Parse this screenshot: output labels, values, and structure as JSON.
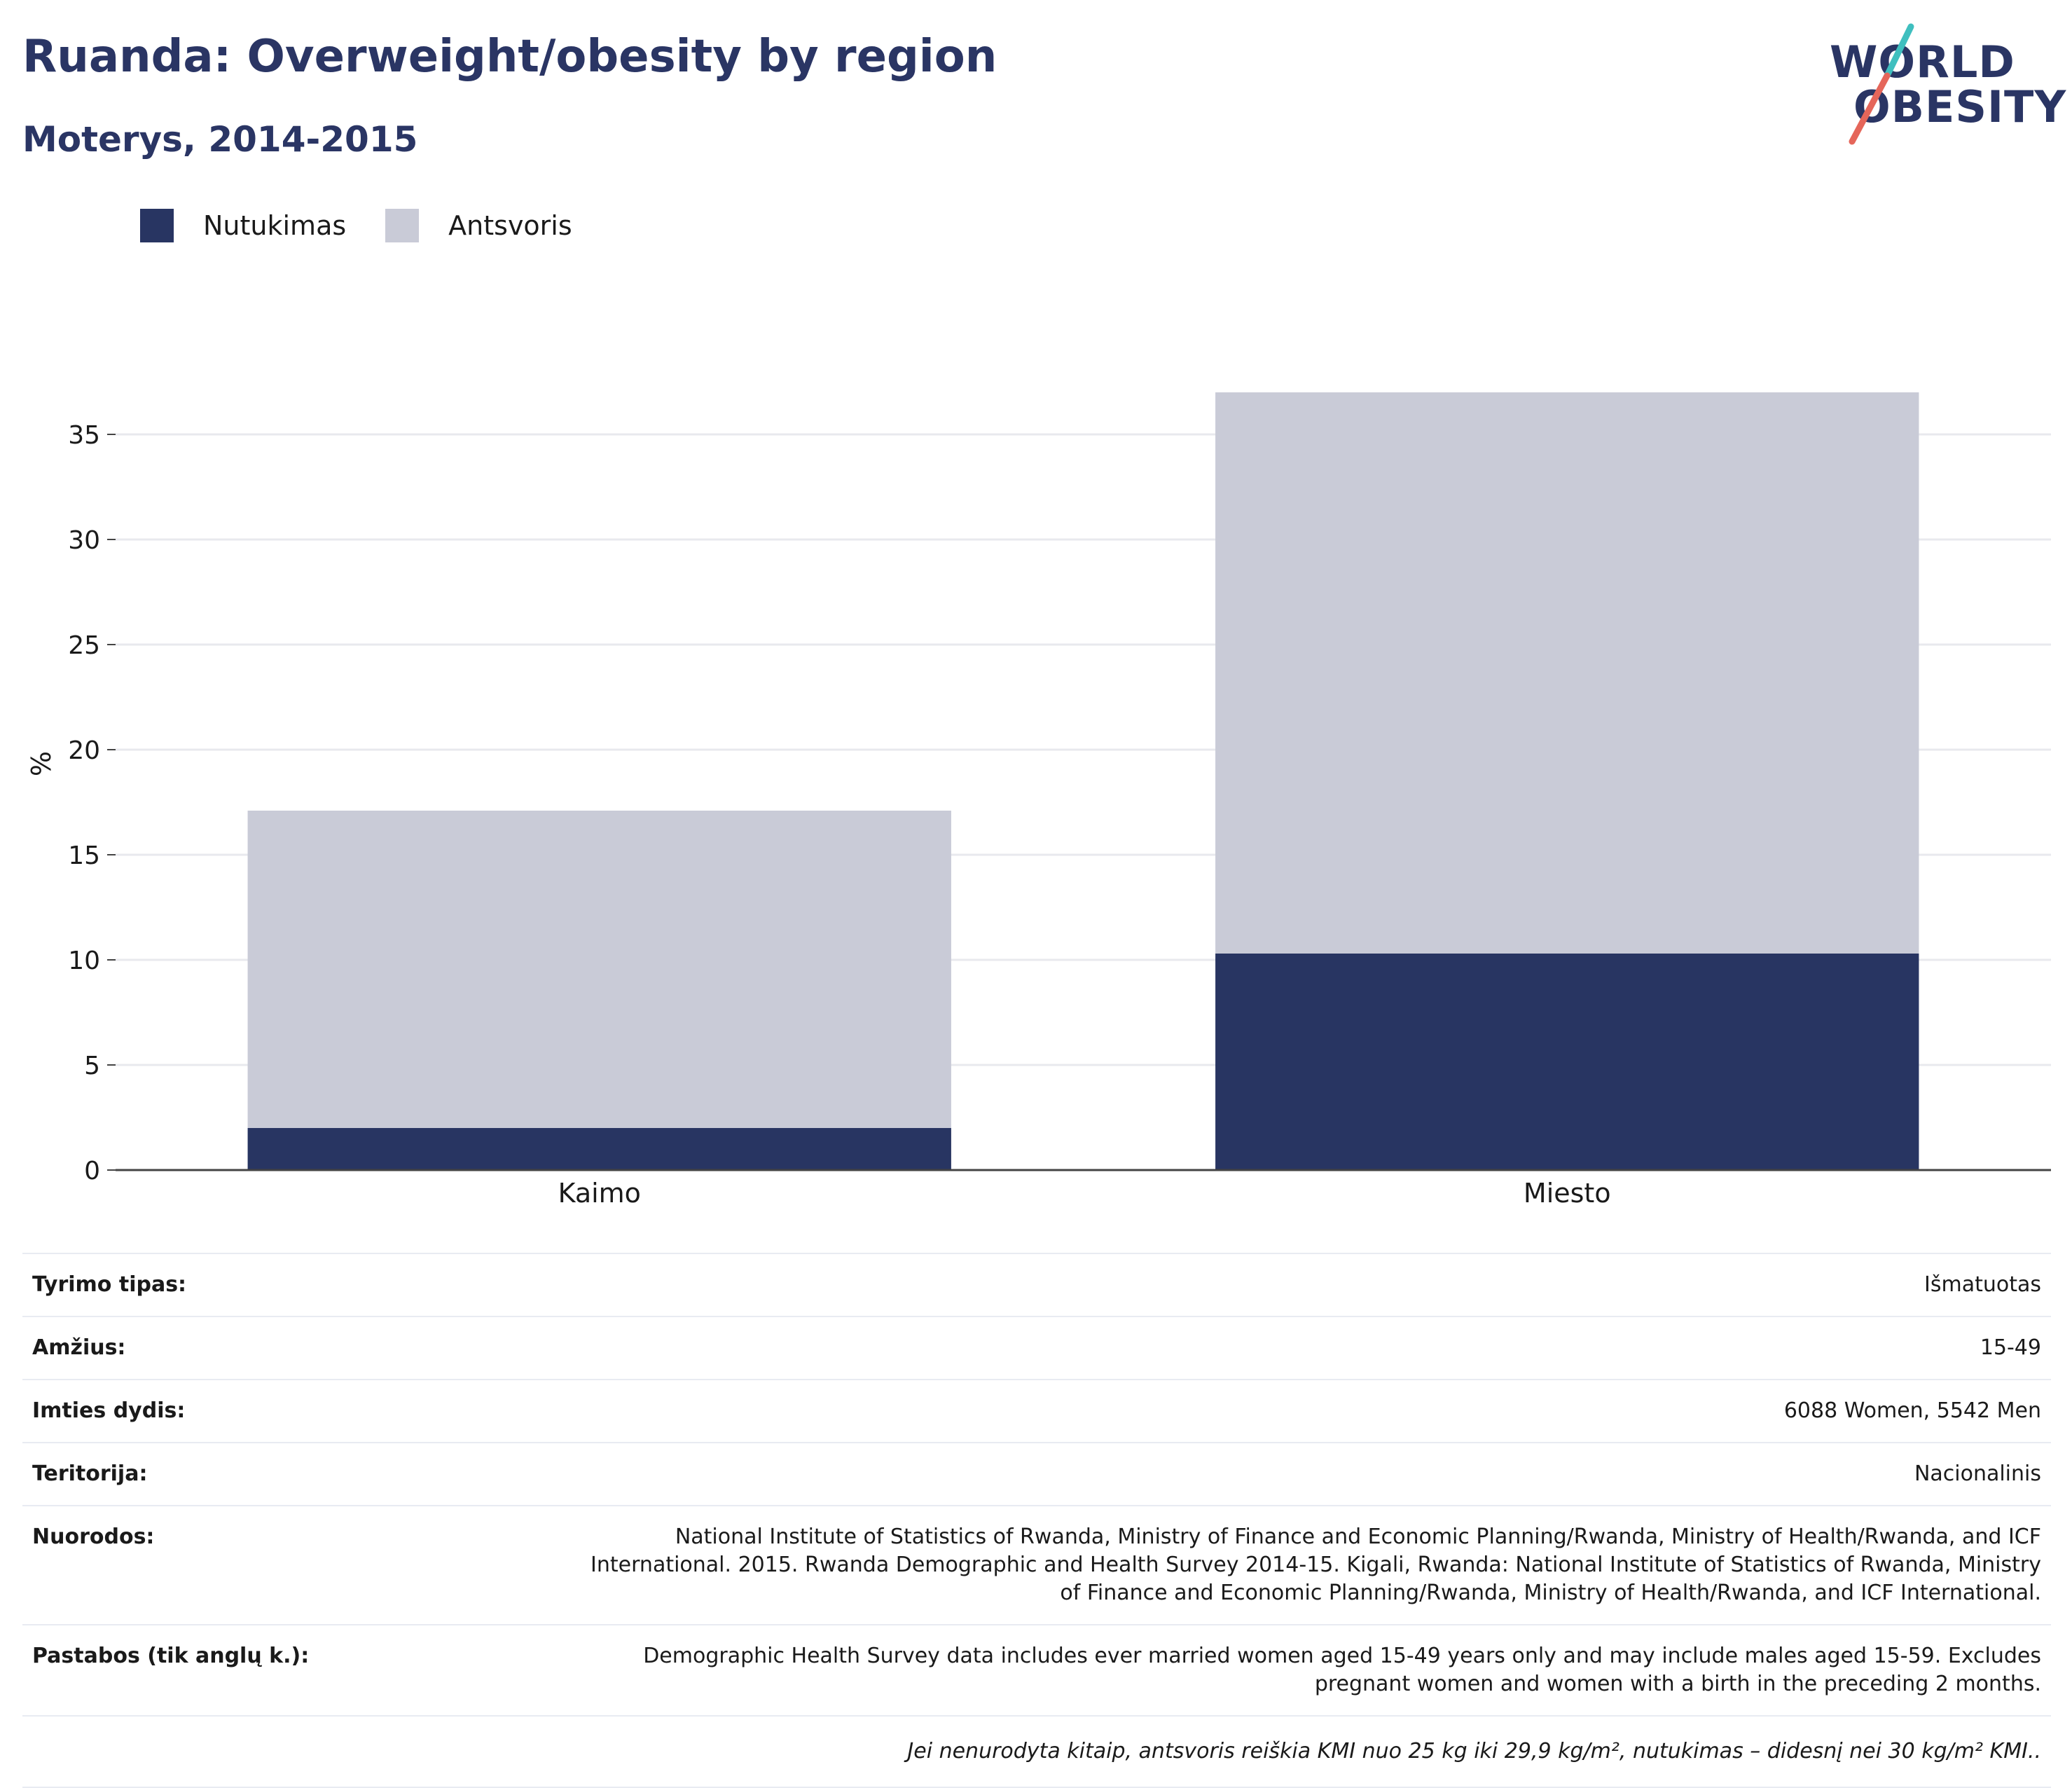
{
  "header": {
    "title": "Ruanda: Overweight/obesity by region",
    "subtitle": "Moterys, 2014-2015"
  },
  "logo": {
    "line1": "WORLD",
    "line2": "OBESITY"
  },
  "colors": {
    "obesity": "#283562",
    "overweight": "#c9cbd7",
    "title": "#2a3564",
    "logo_teal": "#3fbfbf",
    "logo_coral": "#e5665a"
  },
  "chart_data": {
    "type": "bar",
    "stacked": true,
    "categories": [
      "Kaimo",
      "Miesto"
    ],
    "series": [
      {
        "name": "Nutukimas",
        "values": [
          2.0,
          10.3
        ],
        "color": "#283562"
      },
      {
        "name": "Antsvoris",
        "values": [
          15.1,
          26.7
        ],
        "color": "#c9cbd7"
      }
    ],
    "xlabel": "",
    "ylabel": "%",
    "ylim": [
      0,
      37
    ],
    "yticks": [
      0,
      5,
      10,
      15,
      20,
      25,
      30,
      35
    ],
    "grid": true,
    "legend_position": "top-left"
  },
  "meta": {
    "rows": [
      {
        "label": "Tyrimo tipas:",
        "value": "Išmatuotas"
      },
      {
        "label": "Amžius:",
        "value": "15-49"
      },
      {
        "label": "Imties dydis:",
        "value": "6088 Women, 5542 Men"
      },
      {
        "label": "Teritorija:",
        "value": "Nacionalinis"
      },
      {
        "label": "Nuorodos:",
        "value": "National Institute of Statistics of Rwanda, Ministry of Finance and Economic Planning/Rwanda, Ministry of Health/Rwanda, and ICF International. 2015. Rwanda Demographic and Health Survey 2014-15. Kigali, Rwanda: National Institute of Statistics of Rwanda, Ministry of Finance and Economic Planning/Rwanda, Ministry of Health/Rwanda, and ICF International."
      },
      {
        "label": "Pastabos (tik anglų k.):",
        "value": "Demographic Health Survey data includes ever married women aged 15-49 years only and may include males aged 15-59. Excludes pregnant women and women with a birth in the preceding 2 months."
      }
    ],
    "footnote": "Jei nenurodyta kitaip, antsvoris reiškia KMI nuo 25 kg iki 29,9 kg/m², nutukimas – didesnį nei 30 kg/m² KMI.."
  }
}
